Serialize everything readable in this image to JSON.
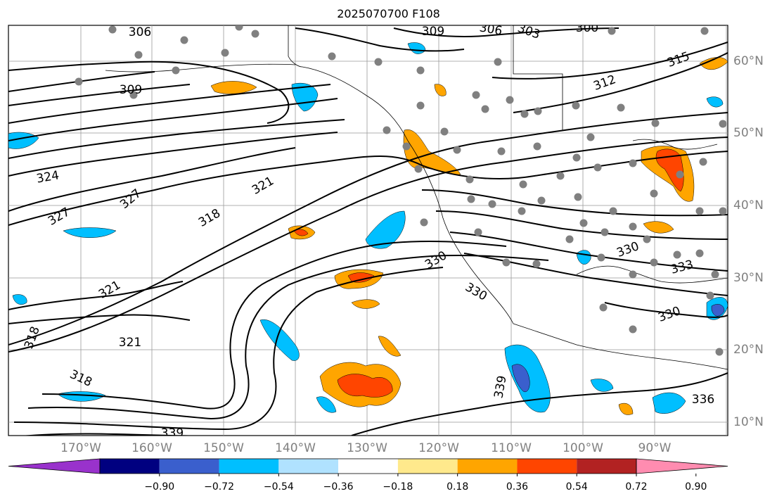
{
  "title": "2025070700 F108",
  "lon_ticks": [
    "170°W",
    "160°W",
    "150°W",
    "140°W",
    "130°W",
    "120°W",
    "110°W",
    "100°W",
    "90°W"
  ],
  "lat_ticks": [
    "60°N",
    "50°N",
    "40°N",
    "30°N",
    "20°N",
    "10°N"
  ],
  "contour_labels": [
    "306",
    "309",
    "306",
    "303",
    "300",
    "315",
    "312",
    "309",
    "324",
    "327",
    "327",
    "321",
    "318",
    "330",
    "330",
    "333",
    "321",
    "321",
    "318",
    "318",
    "330",
    "339",
    "330",
    "336",
    "339"
  ],
  "colorbar": {
    "labels": [
      "−0.90",
      "−0.72",
      "−0.54",
      "−0.36",
      "−0.18",
      "0.18",
      "0.36",
      "0.54",
      "0.72",
      "0.90"
    ],
    "colors": [
      "#9932cc",
      "#000080",
      "#3a5fcd",
      "#00bfff",
      "#b0e2ff",
      "#ffffff",
      "#ffe98c",
      "#ffa500",
      "#ff4500",
      "#b22222",
      "#ff8cb0"
    ]
  },
  "colors": {
    "coastline": "#000000",
    "contour": "#000000",
    "grid": "#999999",
    "station_dot": "#808080"
  }
}
